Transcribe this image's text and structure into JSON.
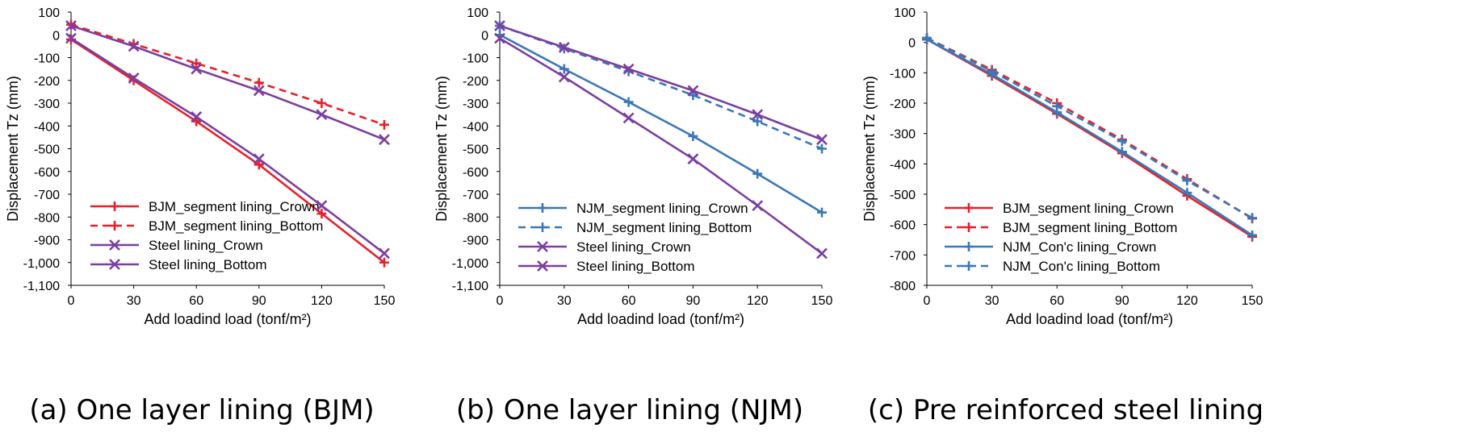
{
  "chart_data": [
    {
      "type": "line",
      "caption": "(a) One layer lining (BJM)",
      "xlabel": "Add loadind load (tonf/m²)",
      "ylabel": "Displacement Tz (mm)",
      "xlim": [
        0,
        150
      ],
      "ylim": [
        -1100,
        100
      ],
      "x_ticks": [
        "0",
        "30",
        "60",
        "90",
        "120",
        "150"
      ],
      "y_ticks": [
        "100",
        "0",
        "-100",
        "-200",
        "-300",
        "-400",
        "-500",
        "-600",
        "-700",
        "-800",
        "-900",
        "-1,000",
        "-1,100"
      ],
      "x": [
        0,
        30,
        60,
        90,
        120,
        150
      ],
      "legend_position": "bottom-left",
      "series": [
        {
          "name": "BJM_segment lining_Crown",
          "color": "#e8202a",
          "dash": "solid",
          "marker": "plus",
          "values": [
            -20,
            -200,
            -380,
            -570,
            -785,
            -1000
          ]
        },
        {
          "name": "BJM_segment lining_Bottom",
          "color": "#e8202a",
          "dash": "dashed",
          "marker": "plus",
          "values": [
            45,
            -40,
            -125,
            -210,
            -300,
            -395
          ]
        },
        {
          "name": "Steel lining_Crown",
          "color": "#7b3fa0",
          "dash": "solid",
          "marker": "x",
          "values": [
            -15,
            -190,
            -360,
            -545,
            -750,
            -960
          ]
        },
        {
          "name": "Steel lining_Bottom",
          "color": "#7b3fa0",
          "dash": "solid",
          "marker": "x",
          "values": [
            40,
            -50,
            -150,
            -245,
            -350,
            -460
          ]
        }
      ]
    },
    {
      "type": "line",
      "caption": "(b) One layer lining (NJM)",
      "xlabel": "Add loadind load (tonf/m²)",
      "ylabel": "Displacement Tz (mm)",
      "xlim": [
        0,
        150
      ],
      "ylim": [
        -1100,
        100
      ],
      "x_ticks": [
        "0",
        "30",
        "60",
        "90",
        "120",
        "150"
      ],
      "y_ticks": [
        "100",
        "0",
        "-100",
        "-200",
        "-300",
        "-400",
        "-500",
        "-600",
        "-700",
        "-800",
        "-900",
        "-1,000",
        "-1,100"
      ],
      "x": [
        0,
        30,
        60,
        90,
        120,
        150
      ],
      "legend_position": "bottom-left",
      "series": [
        {
          "name": "NJM_segment lining_Crown",
          "color": "#3a78b8",
          "dash": "solid",
          "marker": "plus",
          "values": [
            0,
            -150,
            -295,
            -445,
            -610,
            -780
          ]
        },
        {
          "name": "NJM_segment lining_Bottom",
          "color": "#3a78b8",
          "dash": "dashed",
          "marker": "plus",
          "values": [
            40,
            -60,
            -160,
            -265,
            -380,
            -500
          ]
        },
        {
          "name": "Steel lining_Crown",
          "color": "#7b3fa0",
          "dash": "solid",
          "marker": "x",
          "values": [
            40,
            -55,
            -150,
            -245,
            -350,
            -460
          ]
        },
        {
          "name": "Steel lining_Bottom",
          "color": "#7b3fa0",
          "dash": "solid",
          "marker": "x",
          "values": [
            -15,
            -185,
            -365,
            -545,
            -750,
            -960
          ]
        }
      ]
    },
    {
      "type": "line",
      "caption": "(c) Pre reinforced steel lining",
      "xlabel": "Add loadind load (tonf/m²)",
      "ylabel": "Displacement Tz (mm)",
      "xlim": [
        0,
        150
      ],
      "ylim": [
        -800,
        100
      ],
      "x_ticks": [
        "0",
        "30",
        "60",
        "90",
        "120",
        "150"
      ],
      "y_ticks": [
        "100",
        "0",
        "-100",
        "-200",
        "-300",
        "-400",
        "-500",
        "-600",
        "-700",
        "-800"
      ],
      "x": [
        0,
        30,
        60,
        90,
        120,
        150
      ],
      "legend_position": "bottom-left",
      "series": [
        {
          "name": "BJM_segment lining_Crown",
          "color": "#e8202a",
          "dash": "solid",
          "marker": "plus",
          "values": [
            10,
            -110,
            -235,
            -365,
            -505,
            -640
          ]
        },
        {
          "name": "BJM_segment lining_Bottom",
          "color": "#e8202a",
          "dash": "dashed",
          "marker": "plus",
          "values": [
            15,
            -90,
            -200,
            -320,
            -450,
            -580
          ]
        },
        {
          "name": "NJM_Con'c lining_Crown",
          "color": "#3a78b8",
          "dash": "solid",
          "marker": "plus",
          "values": [
            10,
            -105,
            -230,
            -360,
            -495,
            -635
          ]
        },
        {
          "name": "NJM_Con'c lining_Bottom",
          "color": "#3a78b8",
          "dash": "dashed",
          "marker": "plus",
          "values": [
            15,
            -95,
            -210,
            -325,
            -455,
            -578
          ]
        }
      ]
    }
  ]
}
